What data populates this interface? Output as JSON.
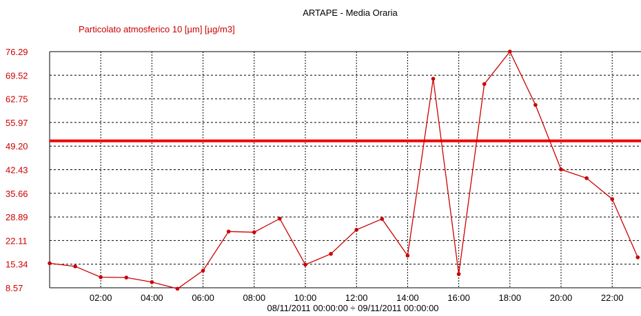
{
  "colors": {
    "series": "#cc0000",
    "threshold": "#ee0000",
    "grid": "#000000",
    "axis_text": "#cc0000",
    "background": "#ffffff"
  },
  "chart_data": {
    "type": "line",
    "title": "ARTAPE - Media Oraria",
    "xlabel": "08/11/2011 00:00:00 ÷ 09/11/2011 00:00:00",
    "ylabel": "",
    "x": [
      "00:00",
      "01:00",
      "02:00",
      "03:00",
      "04:00",
      "05:00",
      "06:00",
      "07:00",
      "08:00",
      "09:00",
      "10:00",
      "11:00",
      "12:00",
      "13:00",
      "14:00",
      "15:00",
      "16:00",
      "17:00",
      "18:00",
      "19:00",
      "20:00",
      "21:00",
      "22:00",
      "23:00"
    ],
    "x_tick_labels": [
      "02:00",
      "04:00",
      "06:00",
      "08:00",
      "10:00",
      "12:00",
      "14:00",
      "16:00",
      "18:00",
      "20:00",
      "22:00"
    ],
    "y_tick_labels": [
      "76.29",
      "69.52",
      "62.75",
      "55.97",
      "49.20",
      "42.43",
      "35.66",
      "28.89",
      "22.11",
      "15.34",
      "8.57"
    ],
    "ylim": [
      8.57,
      76.29
    ],
    "xlim": [
      0,
      24
    ],
    "grid": true,
    "series": [
      {
        "name": "Particolato atmosferico 10 [µm] [µg/m3]",
        "values": [
          15.6,
          14.7,
          11.6,
          11.5,
          10.2,
          8.3,
          13.5,
          24.7,
          24.5,
          28.4,
          15.2,
          18.3,
          25.2,
          28.3,
          17.8,
          68.5,
          12.5,
          67.0,
          76.3,
          61.0,
          42.5,
          40.0,
          34.0,
          17.3
        ]
      }
    ],
    "threshold": {
      "value": 50.7
    }
  }
}
